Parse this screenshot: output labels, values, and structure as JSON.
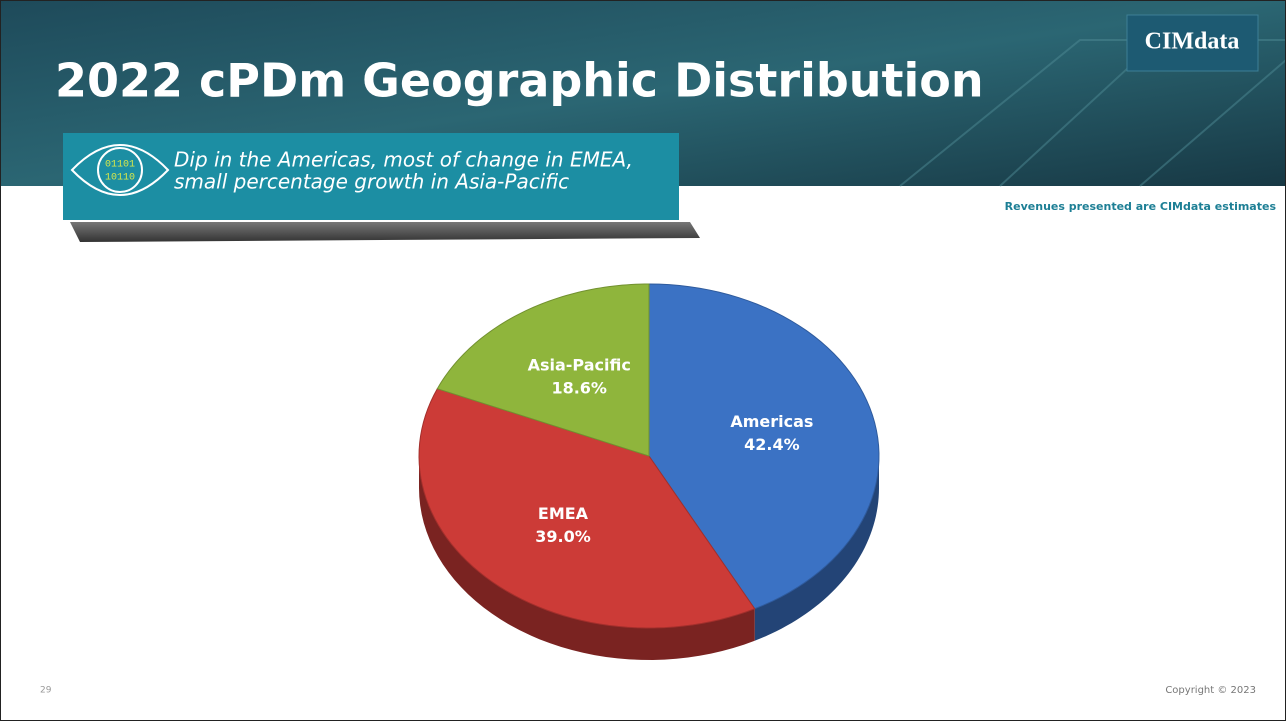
{
  "header": {
    "title": "2022 cPDm Geographic Distribution",
    "logo": "CIMdata"
  },
  "callout": {
    "lines": [
      "Dip in the Americas, most of change in EMEA,",
      "small percentage growth in Asia-Pacific"
    ]
  },
  "note": "Revenues presented are CIMdata estimates",
  "footer": {
    "page_number": "29",
    "copyright": "Copyright © 2023"
  },
  "chart_data": {
    "type": "pie",
    "categories": [
      "Americas",
      "EMEA",
      "Asia-Pacific"
    ],
    "values": [
      42.4,
      39.0,
      18.6
    ],
    "value_labels": [
      "42.4%",
      "39.0%",
      "18.6%"
    ],
    "colors": [
      "#3b72c4",
      "#cc3b37",
      "#8fb53c"
    ]
  }
}
